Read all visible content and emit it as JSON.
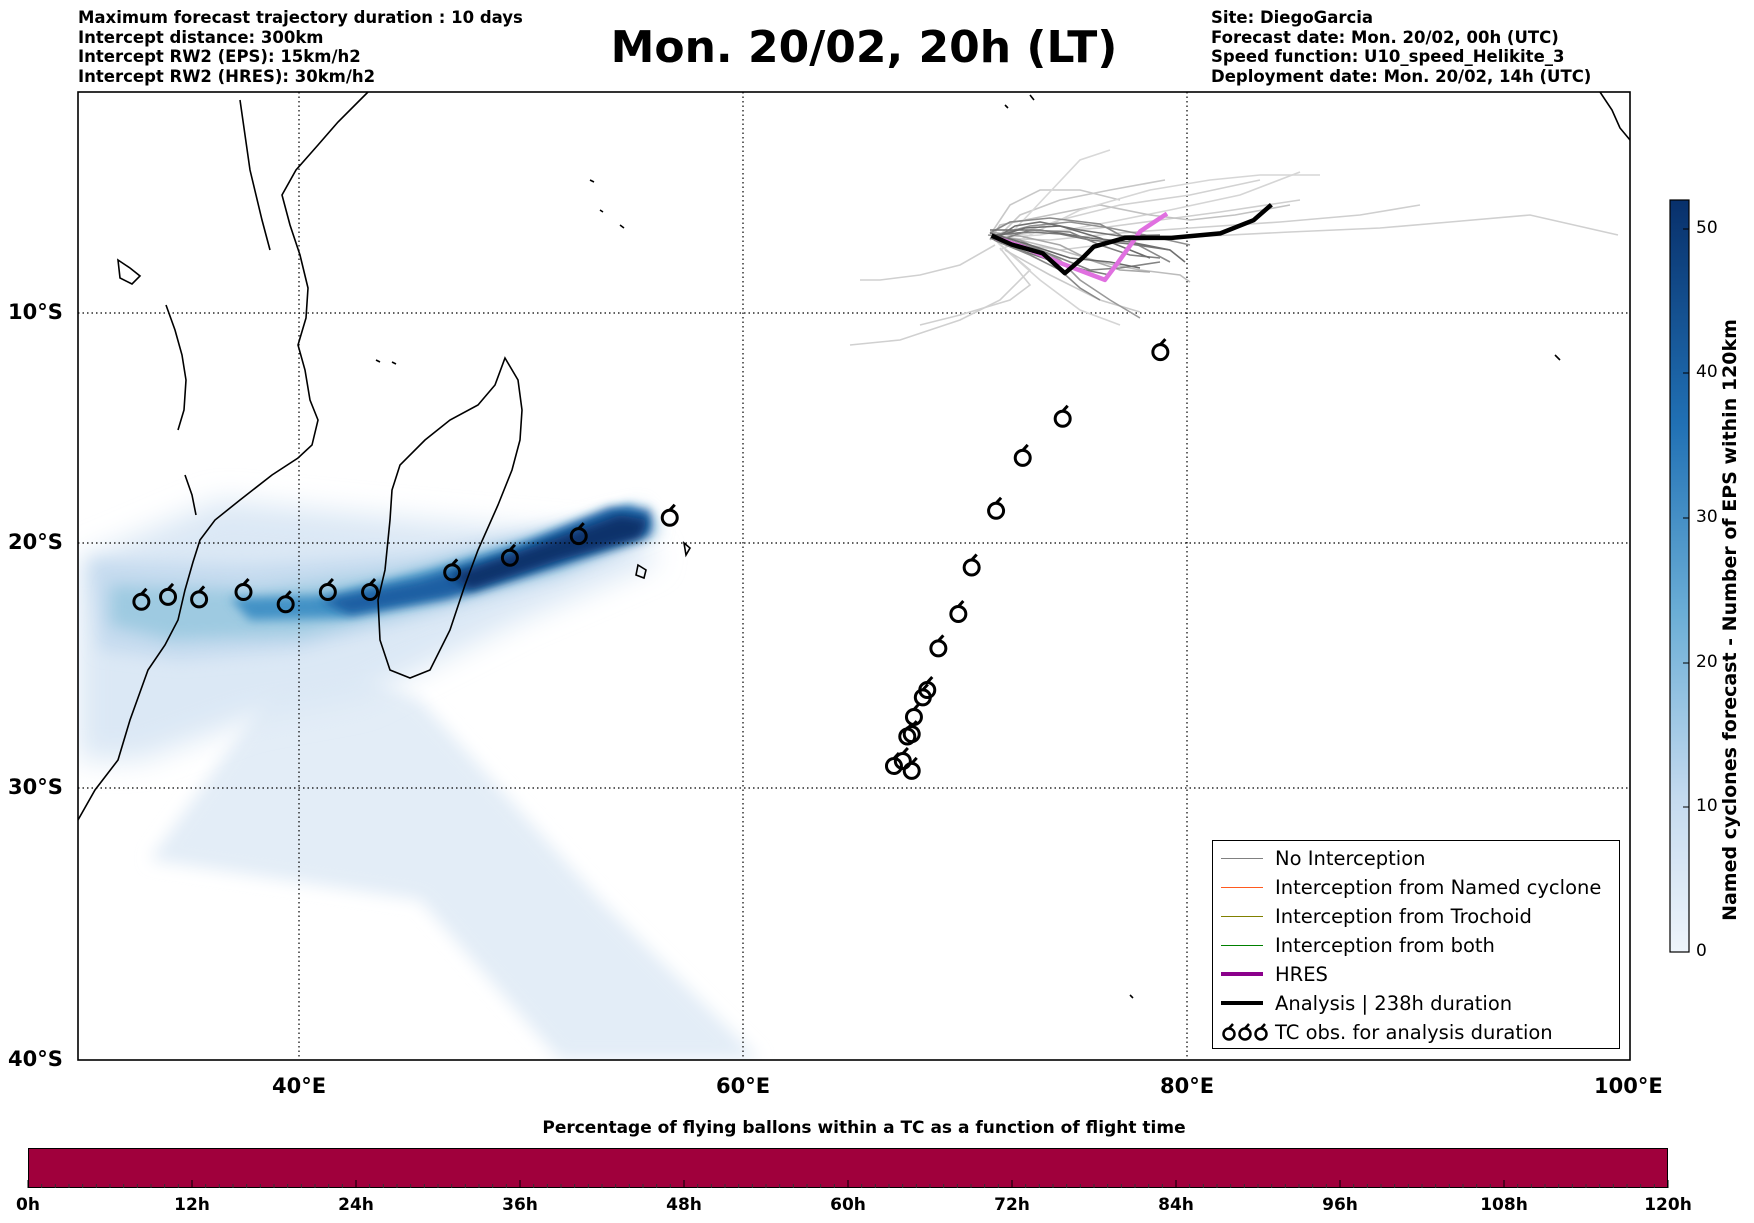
{
  "header_left": [
    "Maximum forecast trajectory duration : 10 days",
    "Intercept distance: 300km",
    "Intercept RW2 (EPS):  15km/h2",
    "Intercept RW2 (HRES): 30km/h2"
  ],
  "title": "Mon. 20/02, 20h (LT)",
  "header_right": [
    "Site: DiegoGarcia",
    "Forecast date: Mon. 20/02, 00h (UTC)",
    "Speed function: U10_speed_Helikite_3",
    "Deployment date: Mon. 20/02, 14h (UTC)"
  ],
  "map": {
    "lon_range": [
      30,
      100
    ],
    "lat_range": [
      -40,
      1
    ],
    "gridlines": "dotted",
    "lat_ticks": [
      {
        "value": -10,
        "label": "10°S"
      },
      {
        "value": -20,
        "label": "20°S"
      },
      {
        "value": -30,
        "label": "30°S"
      },
      {
        "value": -40,
        "label": "40°S"
      }
    ],
    "lon_ticks": [
      {
        "value": 40,
        "label": "40°E"
      },
      {
        "value": 60,
        "label": "60°E"
      },
      {
        "value": 80,
        "label": "80°E"
      },
      {
        "value": 100,
        "label": "100°E"
      }
    ],
    "tc_observations": [
      [
        32.9,
        -22.4
      ],
      [
        34.1,
        -22.2
      ],
      [
        35.5,
        -22.3
      ],
      [
        37.5,
        -22.0
      ],
      [
        39.4,
        -22.5
      ],
      [
        41.3,
        -22.0
      ],
      [
        43.2,
        -22.0
      ],
      [
        46.9,
        -21.2
      ],
      [
        49.5,
        -20.6
      ],
      [
        52.6,
        -19.7
      ],
      [
        56.7,
        -18.9
      ],
      [
        70.3,
        -21.0
      ],
      [
        69.7,
        -22.9
      ],
      [
        68.8,
        -24.3
      ],
      [
        68.3,
        -26.0
      ],
      [
        67.7,
        -27.1
      ],
      [
        67.6,
        -27.8
      ],
      [
        67.2,
        -28.9
      ],
      [
        66.8,
        -29.1
      ],
      [
        67.6,
        -29.3
      ],
      [
        67.4,
        -27.9
      ],
      [
        68.1,
        -26.3
      ],
      [
        71.4,
        -18.6
      ],
      [
        72.6,
        -16.3
      ],
      [
        74.4,
        -14.6
      ],
      [
        78.8,
        -11.7
      ]
    ],
    "analysis_track": [
      [
        71.2,
        -6.5
      ],
      [
        72.1,
        -6.9
      ],
      [
        73.5,
        -7.3
      ],
      [
        74.5,
        -8.2
      ],
      [
        75.3,
        -7.5
      ],
      [
        75.8,
        -7.0
      ],
      [
        77.2,
        -6.6
      ],
      [
        79.3,
        -6.6
      ],
      [
        81.5,
        -6.4
      ],
      [
        83.0,
        -5.8
      ],
      [
        83.8,
        -5.1
      ]
    ],
    "hres_track": [
      [
        71.4,
        -6.6
      ],
      [
        72.6,
        -7.0
      ],
      [
        74.2,
        -7.7
      ],
      [
        76.3,
        -8.5
      ],
      [
        76.9,
        -7.7
      ],
      [
        77.9,
        -6.3
      ],
      [
        79.1,
        -5.5
      ]
    ]
  },
  "density_colorbar": {
    "label": "Named cyclones forecast - Number of EPS within 120km",
    "ticks": [
      "0",
      "10",
      "20",
      "30",
      "40",
      "50"
    ],
    "range": [
      0,
      52
    ],
    "color_low": "#e7f0f9",
    "color_high": "#08306b"
  },
  "legend": {
    "items": [
      {
        "label": "No Interception",
        "color": "#808080",
        "style": "thin"
      },
      {
        "label": "Interception from Named cyclone",
        "color": "#ff5a1f",
        "style": "thin"
      },
      {
        "label": "Interception from Trochoid",
        "color": "#808000",
        "style": "thin"
      },
      {
        "label": "Interception from both",
        "color": "#008000",
        "style": "thin"
      },
      {
        "label": "HRES",
        "color": "#8b008b",
        "style": "thick"
      },
      {
        "label": "Analysis | 238h duration",
        "color": "#000000",
        "style": "thick"
      },
      {
        "label": "TC obs. for analysis duration",
        "color": "#000000",
        "style": "symbol"
      }
    ],
    "symbol": "Ꮚ"
  },
  "percentage_bar": {
    "title": "Percentage of flying ballons within a TC as a function of flight time",
    "color": "#a0003c",
    "ticks": [
      "0h",
      "12h",
      "24h",
      "36h",
      "48h",
      "60h",
      "72h",
      "84h",
      "96h",
      "108h",
      "120h"
    ]
  }
}
